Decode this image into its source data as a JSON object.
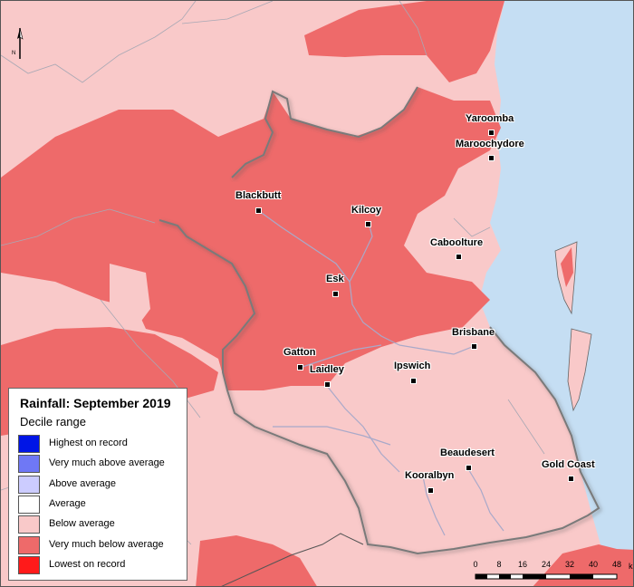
{
  "map": {
    "title": "Rainfall: September 2019",
    "subtitle": "Decile range",
    "north_label": "N",
    "colors": {
      "ocean": "#c5def3",
      "below_average": "#f9c9c9",
      "very_much_below_average": "#ee6a6a",
      "river": "#a9a9c9",
      "boundary": "#7a7a7a"
    },
    "legend": [
      {
        "label": "Highest on record",
        "color": "#0015e6"
      },
      {
        "label": "Very much above average",
        "color": "#6f78f5"
      },
      {
        "label": "Above average",
        "color": "#ccccff"
      },
      {
        "label": "Average",
        "color": "#ffffff"
      },
      {
        "label": "Below average",
        "color": "#f9c9c9"
      },
      {
        "label": "Very much below average",
        "color": "#ee6a6a"
      },
      {
        "label": "Lowest on record",
        "color": "#ff1a1a"
      }
    ],
    "towns": [
      {
        "name": "Yaroomba"
      },
      {
        "name": "Maroochydore"
      },
      {
        "name": "Blackbutt"
      },
      {
        "name": "Kilcoy"
      },
      {
        "name": "Caboolture"
      },
      {
        "name": "Esk"
      },
      {
        "name": "Brisbane"
      },
      {
        "name": "Gatton"
      },
      {
        "name": "Laidley"
      },
      {
        "name": "Ipswich"
      },
      {
        "name": "Beaudesert"
      },
      {
        "name": "Gold Coast"
      },
      {
        "name": "Kooralbyn"
      }
    ],
    "scale": {
      "ticks": [
        "0",
        "8",
        "16",
        "24",
        "32",
        "40",
        "48"
      ],
      "unit": "km"
    }
  }
}
